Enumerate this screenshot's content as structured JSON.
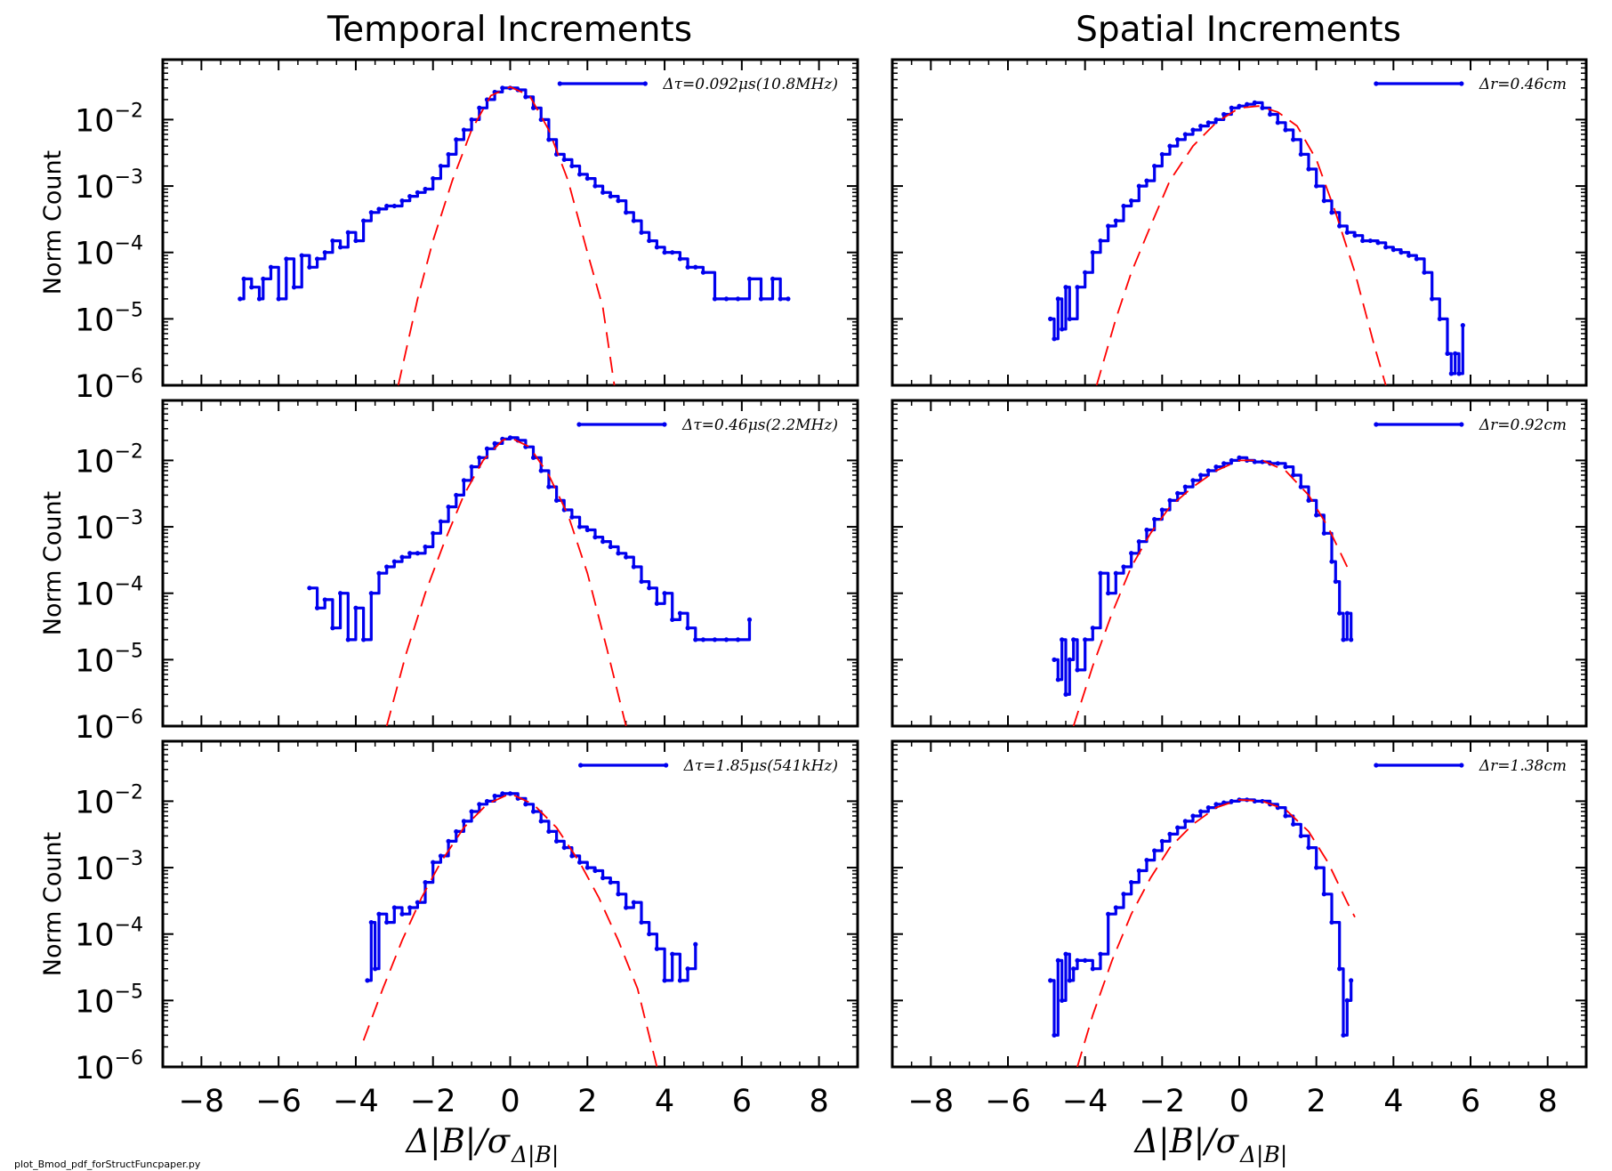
{
  "titles": {
    "temporal": "Temporal Increments",
    "spatial": "Spatial Increments"
  },
  "ylabel": "Norm Count",
  "xlabel_text": "Δ|B|/σ",
  "xlabel_sub": "Δ|B|",
  "footer": "plot_Bmod_pdf_forStructFuncpaper.py",
  "colors": {
    "data": "#0000ee",
    "fit": "#ff0000",
    "axes": "#000000"
  },
  "chart_data": [
    {
      "type": "line",
      "column": "temporal",
      "row": 0,
      "legend": "Δτ=0.092μs(10.8MHz)",
      "legend_position": "top-right",
      "yscale": "log",
      "xlim": [
        -9,
        9
      ],
      "ylim": [
        1e-06,
        0.08
      ],
      "xticks": [
        -8,
        -6,
        -4,
        -2,
        0,
        2,
        4,
        6,
        8
      ],
      "yticks": [
        "10^-2",
        "10^-3",
        "10^-4",
        "10^-5",
        "10^-6"
      ],
      "series": [
        {
          "kind": "data",
          "x": [
            -7.0,
            -6.9,
            -6.7,
            -6.5,
            -6.4,
            -6.2,
            -6.0,
            -5.8,
            -5.6,
            -5.4,
            -5.2,
            -5.0,
            -4.8,
            -4.6,
            -4.4,
            -4.2,
            -4.0,
            -3.8,
            -3.6,
            -3.4,
            -3.2,
            -3.0,
            -2.8,
            -2.6,
            -2.4,
            -2.2,
            -2.0,
            -1.8,
            -1.6,
            -1.4,
            -1.2,
            -1.0,
            -0.8,
            -0.6,
            -0.4,
            -0.2,
            0.0,
            0.2,
            0.4,
            0.6,
            0.8,
            1.0,
            1.2,
            1.4,
            1.6,
            1.8,
            2.0,
            2.2,
            2.4,
            2.6,
            2.8,
            3.0,
            3.2,
            3.4,
            3.6,
            3.8,
            4.0,
            4.2,
            4.4,
            4.6,
            4.8,
            5.0,
            5.3,
            5.6,
            5.9,
            6.2,
            6.5,
            6.8,
            7.0,
            7.2
          ],
          "y": [
            2e-05,
            4e-05,
            3e-05,
            2e-05,
            4e-05,
            6e-05,
            2e-05,
            8e-05,
            3e-05,
            9e-05,
            6e-05,
            8e-05,
            0.0001,
            0.00015,
            0.00012,
            0.0002,
            0.00015,
            0.0003,
            0.0004,
            0.00045,
            0.0005,
            0.0005,
            0.0006,
            0.0007,
            0.0008,
            0.0009,
            0.0013,
            0.002,
            0.003,
            0.005,
            0.007,
            0.01,
            0.015,
            0.02,
            0.026,
            0.03,
            0.03,
            0.028,
            0.022,
            0.015,
            0.01,
            0.005,
            0.003,
            0.0025,
            0.002,
            0.0015,
            0.0013,
            0.001,
            0.0008,
            0.0007,
            0.0006,
            0.0004,
            0.0003,
            0.0002,
            0.00015,
            0.00012,
            0.0001,
            0.0001,
            8e-05,
            6e-05,
            6e-05,
            5e-05,
            2e-05,
            2e-05,
            2e-05,
            4e-05,
            2e-05,
            4e-05,
            2e-05,
            2e-05
          ]
        },
        {
          "kind": "fit",
          "x": [
            -2.9,
            -2.4,
            -2.0,
            -1.5,
            -1.0,
            -0.5,
            0.0,
            0.5,
            1.0,
            1.5,
            2.0,
            2.4,
            2.7
          ],
          "y": [
            1e-06,
            2e-05,
            0.00015,
            0.0012,
            0.007,
            0.023,
            0.031,
            0.023,
            0.007,
            0.0012,
            0.0001,
            1.5e-05,
            1e-06
          ]
        }
      ]
    },
    {
      "type": "line",
      "column": "spatial",
      "row": 0,
      "legend": "Δr=0.46cm",
      "legend_position": "top-right",
      "yscale": "log",
      "xlim": [
        -9,
        9
      ],
      "ylim": [
        1e-06,
        0.08
      ],
      "xticks": [
        -8,
        -6,
        -4,
        -2,
        0,
        2,
        4,
        6,
        8
      ],
      "yticks": [
        "10^-2",
        "10^-3",
        "10^-4",
        "10^-5",
        "10^-6"
      ],
      "series": [
        {
          "kind": "data",
          "x": [
            -4.9,
            -4.8,
            -4.7,
            -4.6,
            -4.5,
            -4.4,
            -4.2,
            -4.0,
            -3.8,
            -3.6,
            -3.4,
            -3.2,
            -3.0,
            -2.8,
            -2.6,
            -2.4,
            -2.2,
            -2.0,
            -1.8,
            -1.6,
            -1.4,
            -1.2,
            -1.0,
            -0.8,
            -0.6,
            -0.4,
            -0.2,
            0.0,
            0.2,
            0.4,
            0.6,
            0.8,
            1.0,
            1.2,
            1.4,
            1.6,
            1.8,
            2.0,
            2.2,
            2.4,
            2.6,
            2.8,
            3.0,
            3.2,
            3.4,
            3.6,
            3.8,
            4.0,
            4.2,
            4.4,
            4.6,
            4.8,
            5.0,
            5.2,
            5.4,
            5.5,
            5.6,
            5.7,
            5.8
          ],
          "y": [
            1e-05,
            5e-06,
            2e-05,
            7e-06,
            3e-05,
            1e-05,
            3e-05,
            5e-05,
            0.0001,
            0.00015,
            0.00025,
            0.0003,
            0.0005,
            0.0006,
            0.001,
            0.0012,
            0.002,
            0.003,
            0.004,
            0.005,
            0.006,
            0.007,
            0.008,
            0.009,
            0.01,
            0.012,
            0.015,
            0.016,
            0.017,
            0.018,
            0.015,
            0.012,
            0.009,
            0.007,
            0.005,
            0.003,
            0.0018,
            0.001,
            0.0006,
            0.0004,
            0.00025,
            0.0002,
            0.00018,
            0.00015,
            0.00015,
            0.00014,
            0.00012,
            0.00011,
            0.0001,
            9e-05,
            8e-05,
            5e-05,
            2e-05,
            1e-05,
            3e-06,
            1.5e-06,
            3e-06,
            1.5e-06,
            8e-06
          ]
        },
        {
          "kind": "fit",
          "x": [
            -3.7,
            -3.2,
            -2.8,
            -2.3,
            -1.8,
            -1.2,
            -0.6,
            0.0,
            0.5,
            1.0,
            1.5,
            2.0,
            2.5,
            3.0,
            3.5,
            3.8
          ],
          "y": [
            1e-06,
            1e-05,
            5e-05,
            0.00025,
            0.0012,
            0.004,
            0.009,
            0.015,
            0.016,
            0.013,
            0.008,
            0.0025,
            0.0004,
            5e-05,
            4e-06,
            1e-06
          ]
        }
      ]
    },
    {
      "type": "line",
      "column": "temporal",
      "row": 1,
      "legend": "Δτ=0.46μs(2.2MHz)",
      "legend_position": "top-right",
      "yscale": "log",
      "xlim": [
        -9,
        9
      ],
      "ylim": [
        1e-06,
        0.08
      ],
      "xticks": [
        -8,
        -6,
        -4,
        -2,
        0,
        2,
        4,
        6,
        8
      ],
      "yticks": [
        "10^-2",
        "10^-3",
        "10^-4",
        "10^-5",
        "10^-6"
      ],
      "series": [
        {
          "kind": "data",
          "x": [
            -5.2,
            -5.0,
            -4.8,
            -4.6,
            -4.4,
            -4.2,
            -4.0,
            -3.8,
            -3.6,
            -3.4,
            -3.2,
            -3.0,
            -2.8,
            -2.6,
            -2.4,
            -2.2,
            -2.0,
            -1.8,
            -1.6,
            -1.4,
            -1.2,
            -1.0,
            -0.8,
            -0.6,
            -0.4,
            -0.2,
            0.0,
            0.2,
            0.4,
            0.6,
            0.8,
            1.0,
            1.2,
            1.4,
            1.6,
            1.8,
            2.0,
            2.2,
            2.4,
            2.6,
            2.8,
            3.0,
            3.2,
            3.4,
            3.6,
            3.8,
            4.0,
            4.2,
            4.4,
            4.6,
            4.8,
            5.0,
            5.3,
            5.6,
            5.9,
            6.2
          ],
          "y": [
            0.00012,
            6e-05,
            8e-05,
            3e-05,
            0.0001,
            2e-05,
            6e-05,
            2e-05,
            0.0001,
            0.0002,
            0.00025,
            0.0003,
            0.00035,
            0.0004,
            0.0004,
            0.0005,
            0.0008,
            0.0012,
            0.002,
            0.003,
            0.005,
            0.008,
            0.011,
            0.015,
            0.018,
            0.021,
            0.022,
            0.02,
            0.016,
            0.011,
            0.007,
            0.004,
            0.0025,
            0.0018,
            0.0014,
            0.001,
            0.0009,
            0.0007,
            0.0006,
            0.0005,
            0.0004,
            0.00035,
            0.00025,
            0.00015,
            0.00012,
            7e-05,
            0.0001,
            4e-05,
            5e-05,
            3e-05,
            2e-05,
            2e-05,
            2e-05,
            2e-05,
            2e-05,
            4e-05
          ]
        },
        {
          "kind": "fit",
          "x": [
            -3.2,
            -2.7,
            -2.2,
            -1.7,
            -1.2,
            -0.7,
            -0.2,
            0.0,
            0.5,
            1.0,
            1.5,
            2.0,
            2.5,
            3.0
          ],
          "y": [
            1e-06,
            1.2e-05,
            0.0001,
            0.0006,
            0.003,
            0.01,
            0.02,
            0.022,
            0.016,
            0.006,
            0.0015,
            0.0002,
            1.5e-05,
            1e-06
          ]
        }
      ]
    },
    {
      "type": "line",
      "column": "spatial",
      "row": 1,
      "legend": "Δr=0.92cm",
      "legend_position": "top-right",
      "yscale": "log",
      "xlim": [
        -9,
        9
      ],
      "ylim": [
        1e-06,
        0.08
      ],
      "xticks": [
        -8,
        -6,
        -4,
        -2,
        0,
        2,
        4,
        6,
        8
      ],
      "yticks": [
        "10^-2",
        "10^-3",
        "10^-4",
        "10^-5",
        "10^-6"
      ],
      "series": [
        {
          "kind": "data",
          "x": [
            -4.8,
            -4.7,
            -4.6,
            -4.5,
            -4.4,
            -4.3,
            -4.2,
            -4.0,
            -3.8,
            -3.6,
            -3.4,
            -3.2,
            -3.0,
            -2.8,
            -2.6,
            -2.4,
            -2.2,
            -2.0,
            -1.8,
            -1.6,
            -1.4,
            -1.2,
            -1.0,
            -0.8,
            -0.6,
            -0.4,
            -0.2,
            0.0,
            0.2,
            0.4,
            0.6,
            0.8,
            1.0,
            1.2,
            1.4,
            1.6,
            1.8,
            2.0,
            2.2,
            2.4,
            2.5,
            2.6,
            2.7,
            2.8,
            2.9
          ],
          "y": [
            1e-05,
            5e-06,
            2e-05,
            3e-06,
            1e-05,
            2e-05,
            7e-06,
            2e-05,
            3e-05,
            0.0002,
            0.0001,
            0.0002,
            0.00025,
            0.0004,
            0.0006,
            0.0009,
            0.0013,
            0.0018,
            0.0025,
            0.0032,
            0.004,
            0.005,
            0.006,
            0.007,
            0.008,
            0.009,
            0.01,
            0.011,
            0.01,
            0.0095,
            0.0095,
            0.009,
            0.009,
            0.008,
            0.006,
            0.004,
            0.0025,
            0.0015,
            0.0008,
            0.0003,
            0.00015,
            5e-05,
            2e-05,
            5e-05,
            2e-05
          ]
        },
        {
          "kind": "fit",
          "x": [
            -4.3,
            -3.8,
            -3.3,
            -2.8,
            -2.3,
            -1.8,
            -1.2,
            -0.6,
            0.0,
            0.6,
            1.2,
            1.8,
            2.3,
            2.8
          ],
          "y": [
            1e-06,
            8e-06,
            5e-05,
            0.00025,
            0.0008,
            0.002,
            0.004,
            0.007,
            0.01,
            0.01,
            0.007,
            0.003,
            0.001,
            0.00025
          ]
        }
      ]
    },
    {
      "type": "line",
      "column": "temporal",
      "row": 2,
      "legend": "Δτ=1.85μs(541kHz)",
      "legend_position": "top-right",
      "yscale": "log",
      "xlim": [
        -9,
        9
      ],
      "ylim": [
        1e-06,
        0.08
      ],
      "xticks": [
        -8,
        -6,
        -4,
        -2,
        0,
        2,
        4,
        6,
        8
      ],
      "yticks": [
        "10^-2",
        "10^-3",
        "10^-4",
        "10^-5",
        "10^-6"
      ],
      "series": [
        {
          "kind": "data",
          "x": [
            -3.7,
            -3.6,
            -3.5,
            -3.4,
            -3.2,
            -3.0,
            -2.8,
            -2.6,
            -2.4,
            -2.2,
            -2.0,
            -1.8,
            -1.6,
            -1.4,
            -1.2,
            -1.0,
            -0.8,
            -0.6,
            -0.4,
            -0.2,
            0.0,
            0.2,
            0.4,
            0.6,
            0.8,
            1.0,
            1.2,
            1.4,
            1.6,
            1.8,
            2.0,
            2.2,
            2.4,
            2.6,
            2.8,
            3.0,
            3.2,
            3.4,
            3.6,
            3.8,
            4.0,
            4.2,
            4.4,
            4.6,
            4.8
          ],
          "y": [
            2e-05,
            0.00015,
            3e-05,
            0.0002,
            0.00015,
            0.00025,
            0.0002,
            0.00025,
            0.0003,
            0.0006,
            0.0012,
            0.0015,
            0.0025,
            0.0035,
            0.005,
            0.007,
            0.009,
            0.01,
            0.012,
            0.013,
            0.013,
            0.011,
            0.009,
            0.007,
            0.005,
            0.0035,
            0.0025,
            0.002,
            0.0015,
            0.0012,
            0.001,
            0.0009,
            0.0007,
            0.0006,
            0.0004,
            0.00025,
            0.0003,
            0.00015,
            0.0001,
            6e-05,
            2e-05,
            5e-05,
            2e-05,
            3e-05,
            7e-05
          ]
        },
        {
          "kind": "fit",
          "x": [
            -3.8,
            -3.3,
            -2.8,
            -2.3,
            -1.8,
            -1.2,
            -0.6,
            0.0,
            0.6,
            1.2,
            1.8,
            2.3,
            2.8,
            3.3,
            3.8
          ],
          "y": [
            2.5e-06,
            1.5e-05,
            8e-05,
            0.00035,
            0.0012,
            0.004,
            0.009,
            0.013,
            0.009,
            0.004,
            0.0012,
            0.00035,
            8e-05,
            1.5e-05,
            1e-06
          ]
        }
      ]
    },
    {
      "type": "line",
      "column": "spatial",
      "row": 2,
      "legend": "Δr=1.38cm",
      "legend_position": "top-right",
      "yscale": "log",
      "xlim": [
        -9,
        9
      ],
      "ylim": [
        1e-06,
        0.08
      ],
      "xticks": [
        -8,
        -6,
        -4,
        -2,
        0,
        2,
        4,
        6,
        8
      ],
      "yticks": [
        "10^-2",
        "10^-3",
        "10^-4",
        "10^-5",
        "10^-6"
      ],
      "series": [
        {
          "kind": "data",
          "x": [
            -4.9,
            -4.8,
            -4.7,
            -4.6,
            -4.5,
            -4.4,
            -4.3,
            -4.2,
            -4.0,
            -3.8,
            -3.6,
            -3.4,
            -3.2,
            -3.0,
            -2.8,
            -2.6,
            -2.4,
            -2.2,
            -2.0,
            -1.8,
            -1.6,
            -1.4,
            -1.2,
            -1.0,
            -0.8,
            -0.6,
            -0.4,
            -0.2,
            0.0,
            0.2,
            0.4,
            0.6,
            0.8,
            1.0,
            1.2,
            1.4,
            1.6,
            1.8,
            2.0,
            2.2,
            2.4,
            2.6,
            2.7,
            2.8,
            2.9
          ],
          "y": [
            2e-05,
            3e-06,
            4e-05,
            1e-05,
            5e-05,
            2e-05,
            3e-05,
            4e-05,
            4e-05,
            3e-05,
            5e-05,
            0.0002,
            0.00025,
            0.0004,
            0.0006,
            0.0009,
            0.0013,
            0.0018,
            0.0025,
            0.0032,
            0.004,
            0.005,
            0.006,
            0.007,
            0.008,
            0.009,
            0.0095,
            0.01,
            0.0105,
            0.0105,
            0.01,
            0.01,
            0.009,
            0.008,
            0.006,
            0.0045,
            0.003,
            0.002,
            0.001,
            0.0004,
            0.00015,
            3e-05,
            3e-06,
            1e-05,
            2e-05
          ]
        },
        {
          "kind": "fit",
          "x": [
            -4.2,
            -3.8,
            -3.3,
            -2.8,
            -2.3,
            -1.8,
            -1.2,
            -0.6,
            0.0,
            0.6,
            1.2,
            1.8,
            2.3,
            2.8,
            3.0
          ],
          "y": [
            1e-06,
            6e-06,
            4e-05,
            0.0002,
            0.0007,
            0.002,
            0.0045,
            0.008,
            0.0105,
            0.01,
            0.0075,
            0.0035,
            0.0012,
            0.0003,
            0.00018
          ]
        }
      ]
    }
  ]
}
